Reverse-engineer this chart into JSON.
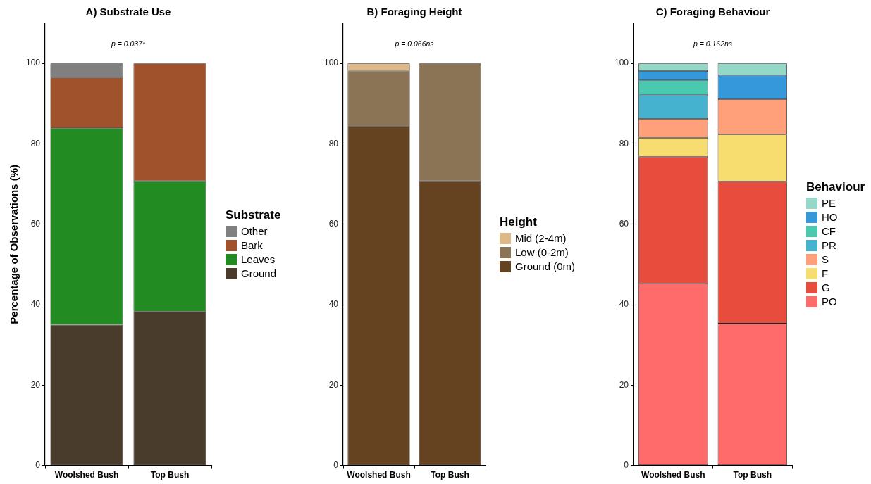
{
  "chart_data": [
    {
      "type": "bar",
      "title": "A) Substrate Use",
      "ylabel": "Percentage of Observations (%)",
      "legend_title": "Substrate",
      "annotations": [
        "p = 0.037*"
      ],
      "categories": [
        "Woolshed Bush",
        "Top Bush"
      ],
      "stacked": true,
      "grid": false,
      "legend": "right",
      "ylim": [
        0,
        110
      ],
      "yticks": [
        0,
        20,
        40,
        60,
        80,
        100
      ],
      "series": [
        {
          "name": "Ground",
          "color": "#4a3c2c",
          "values": [
            35.0,
            38.3
          ]
        },
        {
          "name": "Leaves",
          "color": "#228b22",
          "values": [
            48.9,
            32.4
          ]
        },
        {
          "name": "Bark",
          "color": "#a0522d",
          "values": [
            12.6,
            29.3
          ]
        },
        {
          "name": "Other",
          "color": "#808080",
          "values": [
            3.5,
            0
          ]
        }
      ]
    },
    {
      "type": "bar",
      "title": "B) Foraging Height",
      "legend_title": "Height",
      "annotations": [
        "p = 0.066ns"
      ],
      "categories": [
        "Woolshed Bush",
        "Top Bush"
      ],
      "stacked": true,
      "grid": false,
      "legend": "right",
      "ylim": [
        0,
        110
      ],
      "yticks": [
        0,
        20,
        40,
        60,
        80,
        100
      ],
      "series": [
        {
          "name": "Ground (0m)",
          "color": "#654321",
          "values": [
            84.5,
            70.7
          ]
        },
        {
          "name": "Low (0-2m)",
          "color": "#8b7355",
          "values": [
            13.7,
            29.3
          ]
        },
        {
          "name": "Mid (2-4m)",
          "color": "#deb887",
          "values": [
            1.8,
            0
          ]
        }
      ]
    },
    {
      "type": "bar",
      "title": "C) Foraging Behaviour",
      "legend_title": "Behaviour",
      "annotations": [
        "p = 0.162ns"
      ],
      "categories": [
        "Woolshed Bush",
        "Top Bush"
      ],
      "stacked": true,
      "grid": false,
      "legend": "right",
      "ylim": [
        0,
        110
      ],
      "yticks": [
        0,
        20,
        40,
        60,
        80,
        100
      ],
      "series": [
        {
          "name": "PO",
          "color": "#ff6b6b",
          "values": [
            45.2,
            35.3
          ]
        },
        {
          "name": "G",
          "color": "#e74c3c",
          "values": [
            31.6,
            35.3
          ]
        },
        {
          "name": "F",
          "color": "#f7dc6f",
          "values": [
            4.7,
            11.7
          ]
        },
        {
          "name": "S",
          "color": "#ffa07a",
          "values": [
            4.7,
            8.8
          ]
        },
        {
          "name": "PR",
          "color": "#45b3d0",
          "values": [
            6.0,
            0
          ]
        },
        {
          "name": "CF",
          "color": "#48c9b0",
          "values": [
            3.6,
            0
          ]
        },
        {
          "name": "HO",
          "color": "#3498db",
          "values": [
            2.3,
            6.0
          ]
        },
        {
          "name": "PE",
          "color": "#96d8c8",
          "values": [
            1.9,
            2.9
          ]
        }
      ]
    }
  ]
}
